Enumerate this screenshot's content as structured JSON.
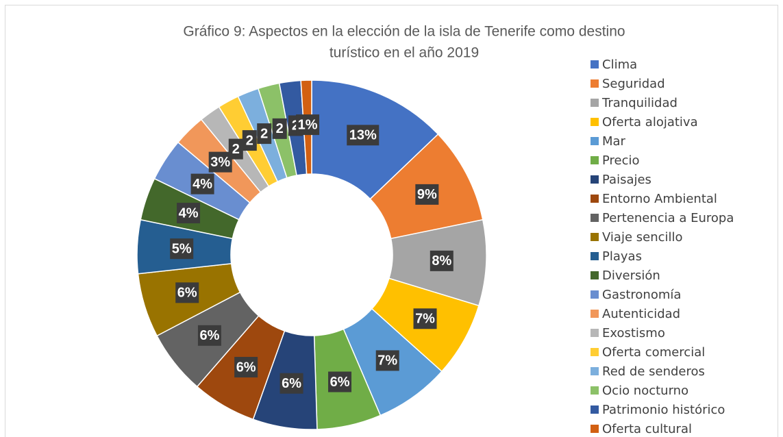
{
  "chart_data": {
    "type": "donut",
    "title": "Gráfico 9: Aspectos en la elección de la isla de Tenerife como destino",
    "subtitle": "turístico en el año 2019",
    "categories": [
      "Clima",
      "Seguridad",
      "Tranquilidad",
      "Oferta alojativa",
      "Mar",
      "Precio",
      "Paisajes",
      "Entorno Ambiental",
      "Pertenencia a Europa",
      "Viaje sencillo",
      "Playas",
      "Diversión",
      "Gastronomía",
      "Autenticidad",
      "Exostismo",
      "Oferta comercial",
      "Red de senderos",
      "Ocio nocturno",
      "Patrimonio histórico",
      "Oferta cultural"
    ],
    "values": [
      13,
      9,
      8,
      7,
      7,
      6,
      6,
      6,
      6,
      6,
      5,
      4,
      4,
      3,
      2,
      2,
      2,
      2,
      2,
      1
    ],
    "value_labels": [
      "13%",
      "9%",
      "8%",
      "7%",
      "7%",
      "6%",
      "6%",
      "6%",
      "6%",
      "6%",
      "5%",
      "4%",
      "4%",
      "3%",
      "2",
      "2",
      "2",
      "2",
      "2",
      "1%"
    ],
    "colors": [
      "#4472c4",
      "#ed7d31",
      "#a5a5a5",
      "#ffc000",
      "#5b9bd5",
      "#70ad47",
      "#264478",
      "#9e480e",
      "#636363",
      "#997300",
      "#255e91",
      "#43682b",
      "#698ed0",
      "#f1975a",
      "#b7b7b7",
      "#ffcd33",
      "#7cafdd",
      "#8cc168",
      "#335aa1",
      "#d26012"
    ],
    "legend": "right"
  }
}
